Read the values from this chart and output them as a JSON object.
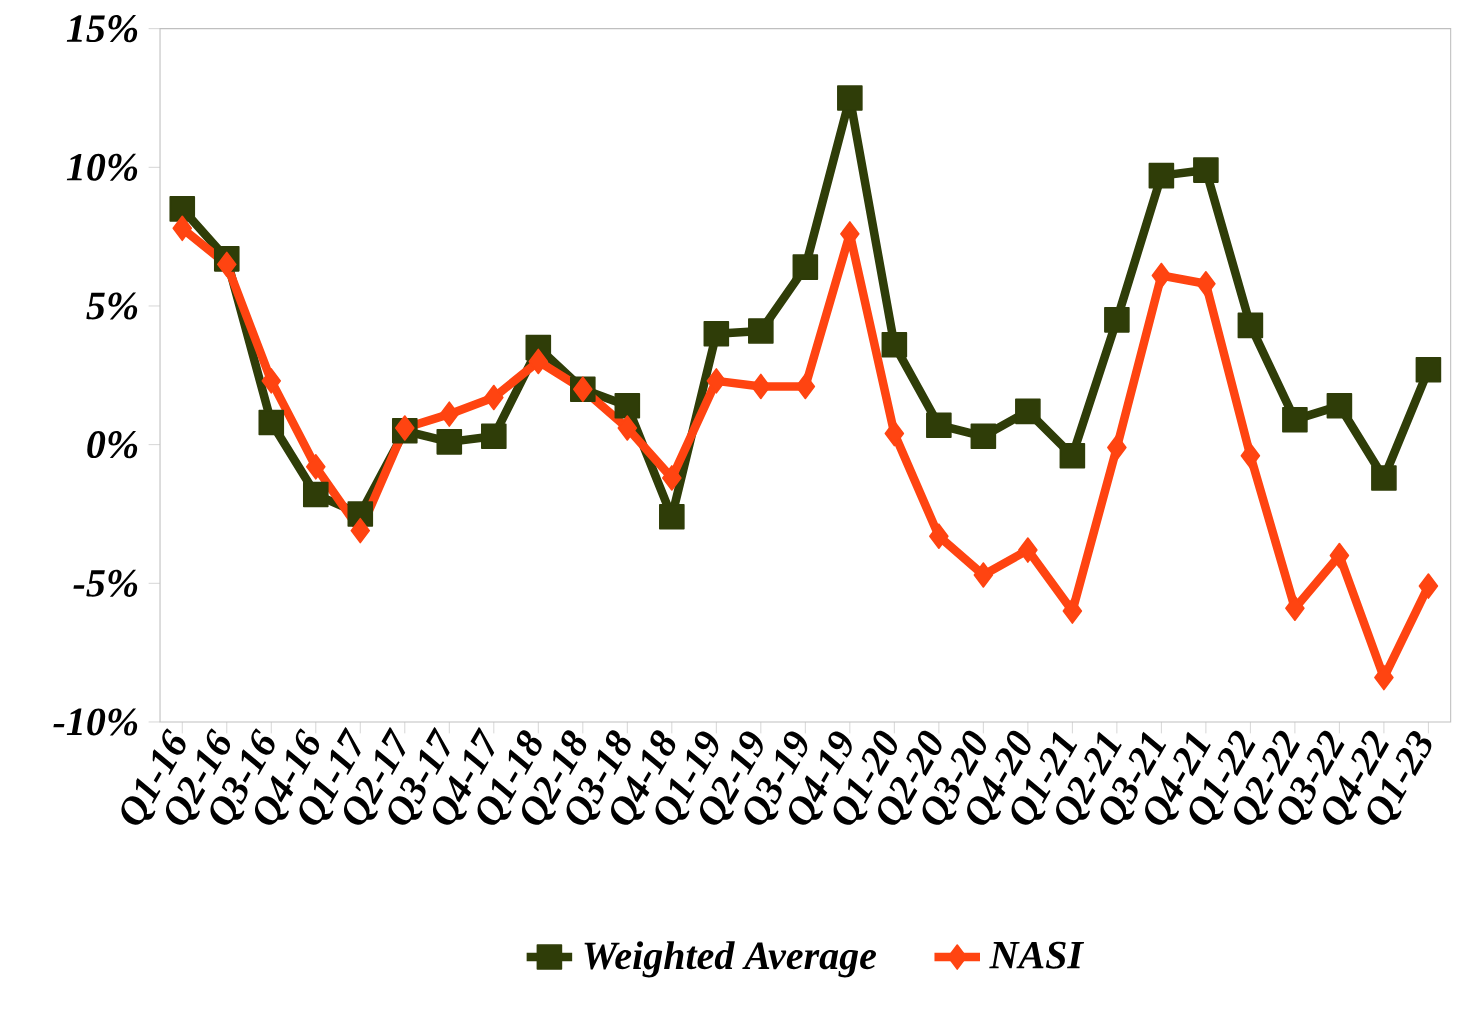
{
  "chart_data": {
    "type": "line",
    "categories": [
      "Q1-16",
      "Q2-16",
      "Q3-16",
      "Q4-16",
      "Q1-17",
      "Q2-17",
      "Q3-17",
      "Q4-17",
      "Q1-18",
      "Q2-18",
      "Q3-18",
      "Q4-18",
      "Q1-19",
      "Q2-19",
      "Q3-19",
      "Q4-19",
      "Q1-20",
      "Q2-20",
      "Q3-20",
      "Q4-20",
      "Q1-21",
      "Q2-21",
      "Q3-21",
      "Q4-21",
      "Q1-22",
      "Q2-22",
      "Q3-22",
      "Q4-22",
      "Q1-23"
    ],
    "series": [
      {
        "name": "Weighted Average",
        "color": "#2f3d08",
        "marker": "square",
        "values": [
          8.5,
          6.7,
          0.8,
          -1.8,
          -2.5,
          0.5,
          0.1,
          0.3,
          3.5,
          2.0,
          1.4,
          -2.6,
          4.0,
          4.1,
          6.4,
          12.5,
          3.6,
          0.7,
          0.3,
          1.2,
          -0.4,
          4.5,
          9.7,
          9.9,
          4.3,
          0.9,
          1.4,
          -1.2,
          2.7
        ]
      },
      {
        "name": "NASI",
        "color": "#ff4411",
        "marker": "diamond",
        "values": [
          7.8,
          6.5,
          2.3,
          -0.8,
          -3.1,
          0.6,
          1.1,
          1.7,
          3.0,
          2.0,
          0.6,
          -1.2,
          2.3,
          2.1,
          2.1,
          7.6,
          0.4,
          -3.3,
          -4.7,
          -3.8,
          -6.0,
          -0.1,
          6.1,
          5.8,
          -0.4,
          -5.9,
          -4.0,
          -8.4,
          -5.1
        ]
      }
    ],
    "ylim": [
      -10,
      15
    ],
    "yticks": [
      {
        "value": -10,
        "label": "-10%"
      },
      {
        "value": -5,
        "label": "-5%"
      },
      {
        "value": 0,
        "label": "0%"
      },
      {
        "value": 5,
        "label": "5%"
      },
      {
        "value": 10,
        "label": "10%"
      },
      {
        "value": 15,
        "label": "15%"
      }
    ],
    "grid": false,
    "legend": "bottom",
    "line_style": "solid"
  }
}
